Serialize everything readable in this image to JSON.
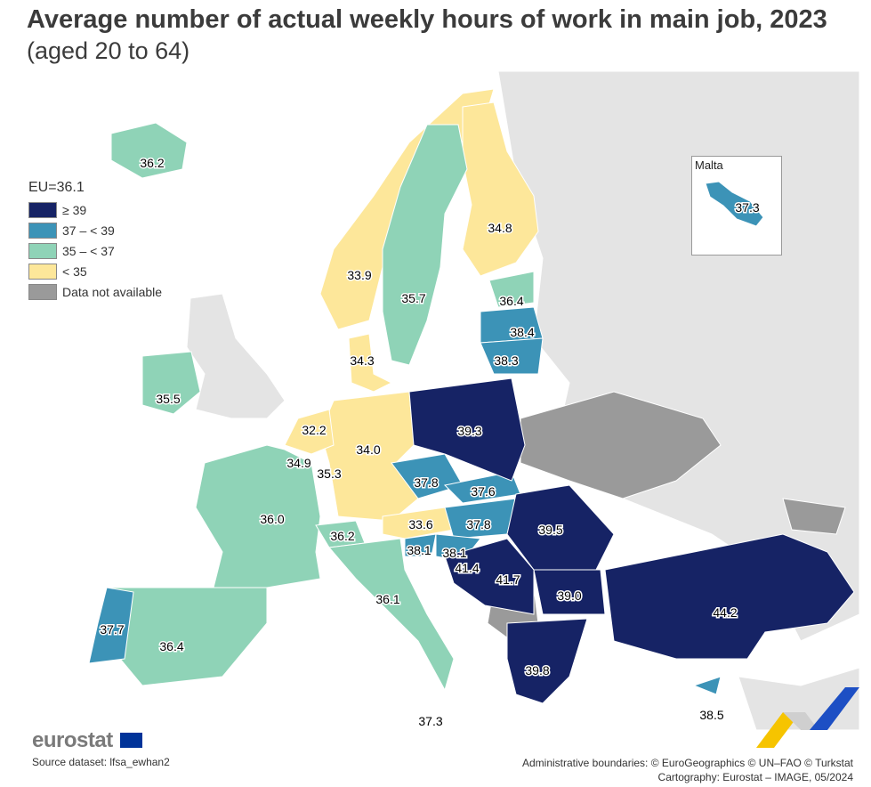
{
  "title": "Average number of actual weekly hours of work in main job, 2023",
  "subtitle": "(aged 20 to 64)",
  "legend": {
    "title": "EU=36.1",
    "items": [
      {
        "label": "≥ 39",
        "color": "#162365"
      },
      {
        "label": "37 – < 39",
        "color": "#3c93b7"
      },
      {
        "label": "35 – < 37",
        "color": "#8fd3b7"
      },
      {
        "label": "< 35",
        "color": "#fde79a"
      },
      {
        "label": "Data not available",
        "color": "#9a9a9a"
      }
    ]
  },
  "colors": {
    "background_land": "#e4e4e4",
    "sea": "#ffffff",
    "border": "#ffffff"
  },
  "inset": {
    "title": "Malta",
    "value": "37.3"
  },
  "values": {
    "iceland": "36.2",
    "norway": "33.9",
    "sweden": "35.7",
    "finland": "34.8",
    "estonia": "36.4",
    "latvia": "38.4",
    "lithuania": "38.3",
    "denmark": "34.3",
    "ireland": "35.5",
    "netherlands": "32.2",
    "belgium": "34.9",
    "luxembourg": "35.3",
    "germany": "34.0",
    "poland": "39.3",
    "czechia": "37.8",
    "slovakia": "37.6",
    "austria": "33.6",
    "hungary": "37.8",
    "slovenia": "38.1",
    "croatia": "38.1",
    "bosnia": "41.4",
    "serbia": "41.7",
    "romania": "39.5",
    "bulgaria": "39.0",
    "turkey": "44.2",
    "greece": "39.8",
    "cyprus": "38.5",
    "france": "36.0",
    "switzerland": "36.2",
    "italy": "36.1",
    "portugal": "37.7",
    "spain": "36.4",
    "malta": "37.3"
  },
  "footer": {
    "logo": "eurostat",
    "source": "Source dataset: lfsa_ewhan2",
    "credits_line1": "Administrative boundaries: © EuroGeographics © UN–FAO © Turkstat",
    "credits_line2": "Cartography: Eurostat – IMAGE, 05/2024"
  }
}
